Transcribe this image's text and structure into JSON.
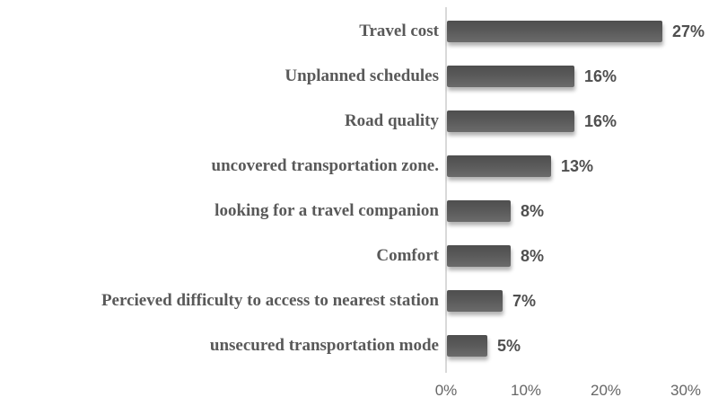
{
  "chart_data": {
    "type": "bar",
    "orientation": "horizontal",
    "categories": [
      "Travel cost",
      "Unplanned schedules",
      "Road quality",
      "uncovered transportation zone.",
      "looking for a travel companion",
      "Comfort",
      "Percieved difficulty to access to nearest station",
      "unsecured transportation mode"
    ],
    "values": [
      27,
      16,
      16,
      13,
      8,
      8,
      7,
      5
    ],
    "value_labels": [
      "27%",
      "16%",
      "16%",
      "13%",
      "8%",
      "8%",
      "7%",
      "5%"
    ],
    "x_ticks": [
      "0%",
      "10%",
      "20%",
      "30%"
    ],
    "x_tick_values": [
      0,
      10,
      20,
      30
    ],
    "xlim": [
      0,
      30
    ],
    "grid": false,
    "legend": false,
    "bar_color": "#595959",
    "category_label_color": "#595959",
    "value_label_color": "#4f4f4f",
    "axis_line_color": "#d9d9d9",
    "tick_label_color": "#666666"
  }
}
